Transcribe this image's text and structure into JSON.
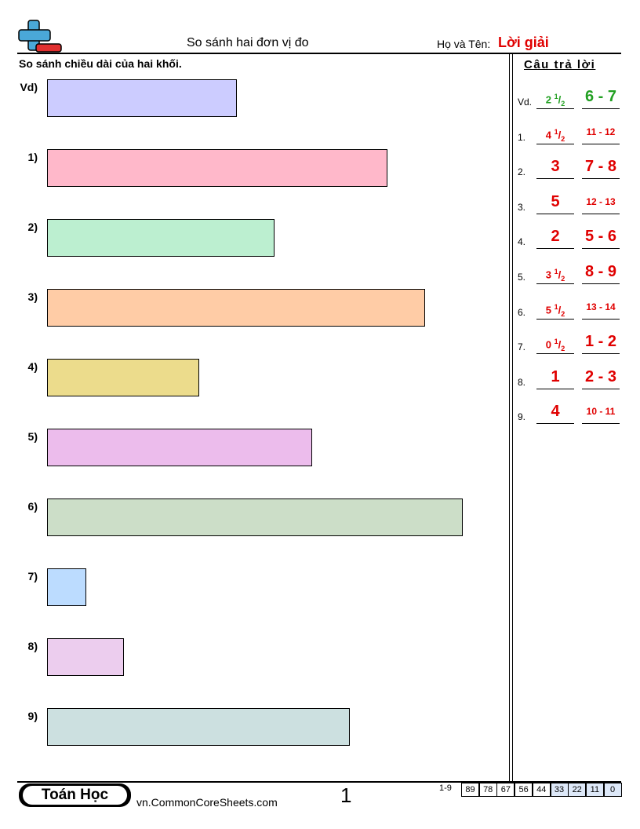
{
  "header": {
    "title": "So sánh hai đơn vị đo",
    "name_label": "Họ và Tên:",
    "name_value": "Lời giải"
  },
  "instructions": "So sánh chiều dài của hai khối.",
  "problems": [
    "Vd)",
    "1)",
    "2)",
    "3)",
    "4)",
    "5)",
    "6)",
    "7)",
    "8)",
    "9)"
  ],
  "answer_key": {
    "title": "Câu trả lời",
    "rows": [
      {
        "label": "Vd.",
        "answer": "2 1/2",
        "range": "6 - 7"
      },
      {
        "label": "1.",
        "answer": "4 1/2",
        "range": "11 - 12"
      },
      {
        "label": "2.",
        "answer": "3",
        "range": "7 - 8"
      },
      {
        "label": "3.",
        "answer": "5",
        "range": "12 - 13"
      },
      {
        "label": "4.",
        "answer": "2",
        "range": "5 - 6"
      },
      {
        "label": "5.",
        "answer": "3 1/2",
        "range": "8 - 9"
      },
      {
        "label": "6.",
        "answer": "5 1/2",
        "range": "13 - 14"
      },
      {
        "label": "7.",
        "answer": "0 1/2",
        "range": "1 - 2"
      },
      {
        "label": "8.",
        "answer": "1",
        "range": "2 - 3"
      },
      {
        "label": "9.",
        "answer": "4",
        "range": "10 - 11"
      }
    ]
  },
  "footer": {
    "brand": "Toán Học",
    "url": "vn.CommonCoreSheets.com",
    "page": "1",
    "score_range": "1-9",
    "scores": [
      89,
      78,
      67,
      56,
      44,
      33,
      22,
      11,
      0
    ]
  }
}
